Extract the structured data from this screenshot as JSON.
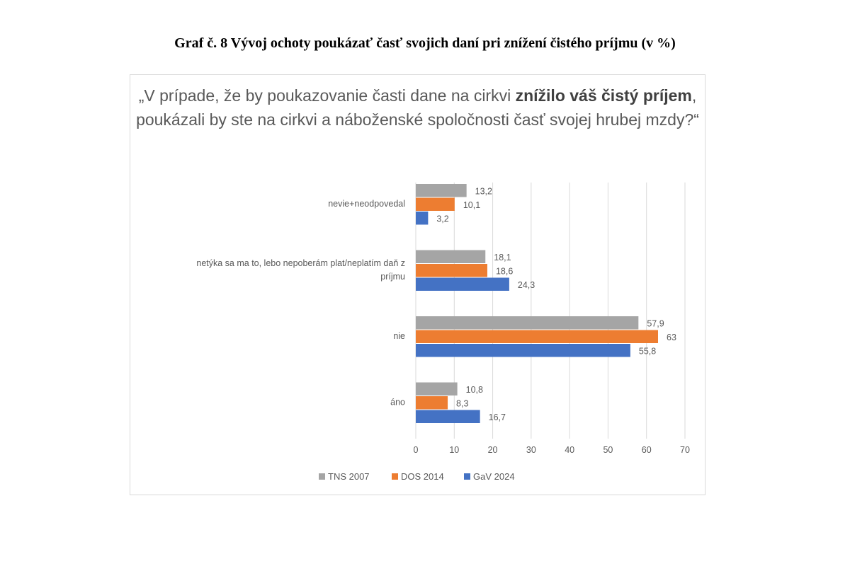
{
  "document_title": "Graf č. 8 Vývoj ochoty poukázať časť svojich daní pri znížení čistého príjmu (v %)",
  "chart_data": {
    "type": "bar",
    "orientation": "horizontal",
    "title_parts": [
      "„V prípade, že by poukazovanie časti dane na cirkvi ",
      "znížilo váš čistý príjem",
      ", poukázali by ste na cirkvi a náboženské spoločnosti časť svojej hrubej mzdy?“"
    ],
    "categories": [
      "nevie+neodpovedal",
      "netýka sa ma to, lebo nepoberám plat/neplatím daň z príjmu",
      "nie",
      "áno"
    ],
    "category_lines": [
      [
        "nevie+neodpovedal"
      ],
      [
        "netýka sa ma to, lebo nepoberám plat/neplatím daň z",
        "príjmu"
      ],
      [
        "nie"
      ],
      [
        "áno"
      ]
    ],
    "series": [
      {
        "name": "TNS 2007",
        "color": "#a5a5a5",
        "values": [
          13.2,
          18.1,
          57.9,
          10.8
        ],
        "labels": [
          "13,2",
          "18,1",
          "57,9",
          "10,8"
        ]
      },
      {
        "name": "DOS 2014",
        "color": "#ed7d31",
        "values": [
          10.1,
          18.6,
          63,
          8.3
        ],
        "labels": [
          "10,1",
          "18,6",
          "63",
          "8,3"
        ]
      },
      {
        "name": "GaV 2024",
        "color": "#4472c4",
        "values": [
          3.2,
          24.3,
          55.8,
          16.7
        ],
        "labels": [
          "3,2",
          "24,3",
          "55,8",
          "16,7"
        ]
      }
    ],
    "xlim": [
      0,
      70
    ],
    "xticks": [
      0,
      10,
      20,
      30,
      40,
      50,
      60,
      70
    ],
    "grid": true,
    "legend": "bottom-left"
  }
}
